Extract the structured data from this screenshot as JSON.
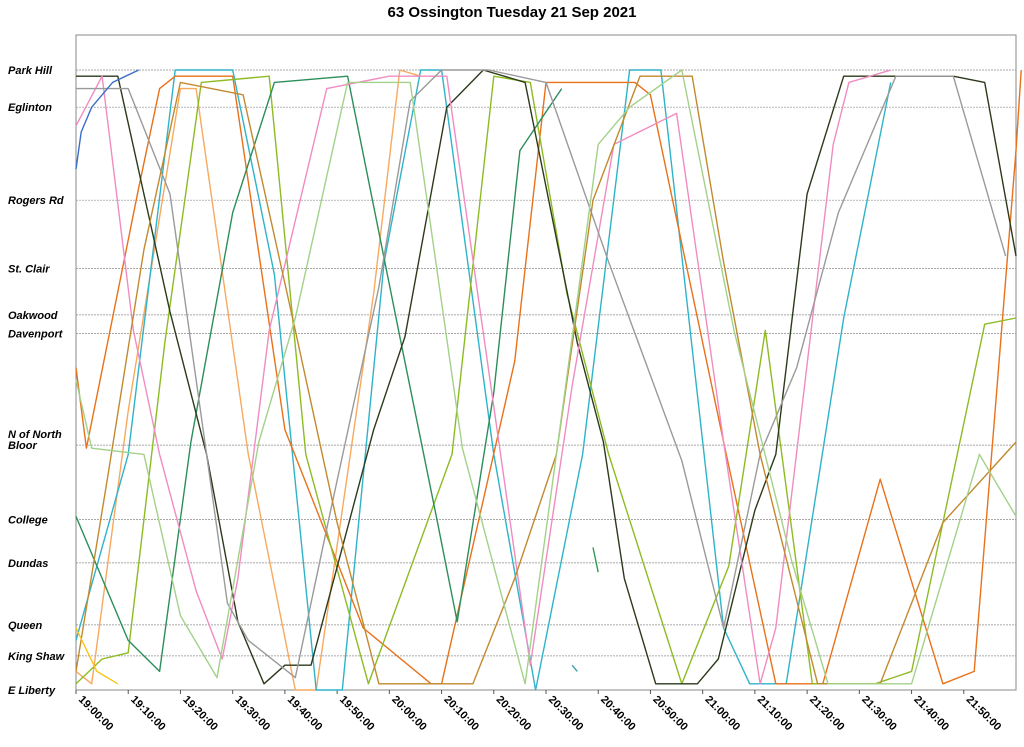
{
  "chart_data": {
    "type": "line",
    "title": "63 Ossington Tuesday 21 Sep 2021",
    "xlim": [
      "19:00:00",
      "22:00:00"
    ],
    "grid": true,
    "stops": [
      {
        "name": "Park Hill",
        "pos": 0
      },
      {
        "name": "Eglinton",
        "pos": 0.06
      },
      {
        "name": "Rogers Rd",
        "pos": 0.21
      },
      {
        "name": "St. Clair",
        "pos": 0.32
      },
      {
        "name": "Oakwood",
        "pos": 0.395
      },
      {
        "name": "Davenport",
        "pos": 0.425
      },
      {
        "name": "N of North Bloor",
        "pos": 0.605
      },
      {
        "name": "College",
        "pos": 0.725
      },
      {
        "name": "Dundas",
        "pos": 0.795
      },
      {
        "name": "Queen",
        "pos": 0.895
      },
      {
        "name": "King Shaw",
        "pos": 0.945
      },
      {
        "name": "E Liberty",
        "pos": 1
      }
    ],
    "x_ticks": [
      "19:00:00",
      "19:10:00",
      "19:20:00",
      "19:30:00",
      "19:40:00",
      "19:50:00",
      "20:00:00",
      "20:10:00",
      "20:20:00",
      "20:30:00",
      "20:40:00",
      "20:50:00",
      "21:00:00",
      "21:10:00",
      "21:20:00",
      "21:30:00",
      "21:40:00",
      "21:50:00"
    ],
    "series": [
      {
        "color": "#F7A95E",
        "points": [
          [
            0,
            0.97
          ],
          [
            3,
            0.99
          ],
          [
            10,
            0.55
          ],
          [
            20,
            0.03
          ],
          [
            23,
            0.03
          ],
          [
            33,
            0.62
          ],
          [
            42,
            1
          ],
          [
            46,
            1
          ],
          [
            57,
            0.36
          ],
          [
            62,
            0
          ],
          [
            66,
            0.01
          ]
        ]
      },
      {
        "color": "#2FB3C9",
        "points": [
          [
            0,
            0.92
          ],
          [
            10,
            0.62
          ],
          [
            19,
            0
          ],
          [
            30,
            0
          ],
          [
            38,
            0.33
          ],
          [
            46,
            1
          ],
          [
            51,
            1
          ],
          [
            59,
            0.31
          ],
          [
            66,
            0
          ],
          [
            70,
            0
          ],
          [
            80,
            0.62
          ],
          [
            88,
            1
          ],
          [
            97,
            0.62
          ],
          [
            106,
            0
          ],
          [
            112,
            0
          ],
          [
            124,
            0.9
          ],
          [
            129,
            0.99
          ],
          [
            136,
            0.99
          ],
          [
            147,
            0.4
          ],
          [
            156,
            0.02
          ]
        ]
      },
      {
        "color": "#E8711A",
        "points": [
          [
            0,
            0.48
          ],
          [
            2,
            0.61
          ],
          [
            12,
            0.19
          ],
          [
            16,
            0.03
          ],
          [
            19,
            0.01
          ],
          [
            30,
            0.01
          ],
          [
            40,
            0.58
          ],
          [
            55,
            0.9
          ],
          [
            68,
            0.99
          ],
          [
            70,
            0.99
          ],
          [
            84,
            0.47
          ],
          [
            90,
            0.02
          ],
          [
            107,
            0.02
          ],
          [
            110,
            0.04
          ],
          [
            124,
            0.6
          ],
          [
            134,
            0.99
          ],
          [
            143,
            0.99
          ],
          [
            154,
            0.66
          ],
          [
            166,
            0.99
          ],
          [
            172,
            0.97
          ],
          [
            180,
            0.13
          ],
          [
            181,
            0.0
          ]
        ]
      },
      {
        "color": "#8EBB24",
        "points": [
          [
            0,
            0.99
          ],
          [
            5,
            0.95
          ],
          [
            10,
            0.94
          ],
          [
            17,
            0.44
          ],
          [
            24,
            0.02
          ],
          [
            37,
            0.01
          ],
          [
            44,
            0.62
          ],
          [
            56,
            0.99
          ],
          [
            72,
            0.62
          ],
          [
            80,
            0.01
          ],
          [
            87,
            0.02
          ],
          [
            94,
            0.36
          ],
          [
            102,
            0.62
          ],
          [
            116,
            0.99
          ],
          [
            125,
            0.8
          ],
          [
            132,
            0.42
          ],
          [
            141,
            0.99
          ],
          [
            153,
            0.99
          ],
          [
            160,
            0.97
          ],
          [
            166,
            0.73
          ],
          [
            174,
            0.41
          ],
          [
            180,
            0.4
          ]
        ]
      },
      {
        "color": "#2C8E5A",
        "points": [
          [
            0,
            0.72
          ],
          [
            10,
            0.92
          ],
          [
            16,
            0.97
          ],
          [
            22,
            0.6
          ],
          [
            30,
            0.23
          ],
          [
            38,
            0.02
          ],
          [
            52,
            0.01
          ],
          [
            62,
            0.43
          ],
          [
            69,
            0.72
          ],
          [
            73,
            0.89
          ],
          [
            80,
            0.52
          ],
          [
            85,
            0.13
          ],
          [
            93,
            0.03
          ]
        ]
      },
      {
        "color": "#2C3A1B",
        "points": [
          [
            0,
            0.01
          ],
          [
            8,
            0.01
          ],
          [
            18,
            0.39
          ],
          [
            25,
            0.62
          ],
          [
            31,
            0.89
          ],
          [
            36,
            0.99
          ],
          [
            40,
            0.96
          ],
          [
            45,
            0.96
          ],
          [
            57,
            0.58
          ],
          [
            63,
            0.43
          ],
          [
            71,
            0.06
          ],
          [
            78,
            0
          ],
          [
            86,
            0.02
          ],
          [
            96,
            0.44
          ],
          [
            101,
            0.6
          ],
          [
            105,
            0.82
          ],
          [
            111,
            0.99
          ],
          [
            119,
            0.99
          ],
          [
            123,
            0.95
          ],
          [
            130,
            0.71
          ],
          [
            134,
            0.62
          ],
          [
            140,
            0.2
          ],
          [
            147,
            0.01
          ],
          [
            168,
            0.01
          ],
          [
            174,
            0.02
          ],
          [
            180,
            0.3
          ]
        ]
      },
      {
        "color": "#F08CC0",
        "points": [
          [
            0,
            0.09
          ],
          [
            5,
            0.01
          ],
          [
            11,
            0.42
          ],
          [
            16,
            0.62
          ],
          [
            23,
            0.84
          ],
          [
            28,
            0.95
          ],
          [
            31,
            0.82
          ],
          [
            37,
            0.42
          ],
          [
            48,
            0.03
          ],
          [
            60,
            0.01
          ],
          [
            71,
            0.01
          ],
          [
            83,
            0.72
          ],
          [
            87,
            0.96
          ],
          [
            95,
            0.51
          ],
          [
            103,
            0.12
          ],
          [
            115,
            0.07
          ],
          [
            124,
            0.6
          ],
          [
            131,
            0.99
          ],
          [
            134,
            0.9
          ],
          [
            145,
            0.12
          ],
          [
            148,
            0.02
          ],
          [
            156,
            0.0
          ]
        ]
      },
      {
        "color": "#9A9A9A",
        "points": [
          [
            0,
            0.03
          ],
          [
            10,
            0.03
          ],
          [
            18,
            0.2
          ],
          [
            25,
            0.62
          ],
          [
            29,
            0.86
          ],
          [
            33,
            0.92
          ],
          [
            42,
            0.98
          ],
          [
            48,
            0.74
          ],
          [
            58,
            0.35
          ],
          [
            64,
            0.05
          ],
          [
            70,
            0.0
          ],
          [
            79,
            0.0
          ],
          [
            90,
            0.02
          ],
          [
            102,
            0.31
          ],
          [
            116,
            0.63
          ],
          [
            124,
            0.9
          ],
          [
            131,
            0.62
          ],
          [
            138,
            0.48
          ],
          [
            146,
            0.23
          ],
          [
            157,
            0.01
          ],
          [
            168,
            0.01
          ],
          [
            178,
            0.3
          ]
        ]
      },
      {
        "color": "#C18A2F",
        "points": [
          [
            0,
            0.97
          ],
          [
            6,
            0.66
          ],
          [
            13,
            0.29
          ],
          [
            20,
            0.02
          ],
          [
            32,
            0.04
          ],
          [
            42,
            0.42
          ],
          [
            50,
            0.73
          ],
          [
            58,
            0.99
          ],
          [
            76,
            0.99
          ],
          [
            84,
            0.82
          ],
          [
            92,
            0.62
          ],
          [
            99,
            0.21
          ],
          [
            108,
            0.01
          ],
          [
            118,
            0.01
          ],
          [
            124,
            0.31
          ],
          [
            131,
            0.62
          ],
          [
            142,
            0.99
          ],
          [
            154,
            0.99
          ],
          [
            166,
            0.73
          ],
          [
            180,
            0.6
          ]
        ]
      },
      {
        "color": "#A4D18A",
        "points": [
          [
            0,
            0.5
          ],
          [
            3,
            0.61
          ],
          [
            13,
            0.62
          ],
          [
            20,
            0.88
          ],
          [
            27,
            0.98
          ],
          [
            35,
            0.6
          ],
          [
            42,
            0.4
          ],
          [
            52,
            0.02
          ],
          [
            64,
            0.02
          ],
          [
            74,
            0.61
          ],
          [
            86,
            0.99
          ],
          [
            92,
            0.62
          ],
          [
            100,
            0.12
          ],
          [
            106,
            0.06
          ],
          [
            116,
            0.0
          ],
          [
            126,
            0.42
          ],
          [
            137,
            0.79
          ],
          [
            144,
            0.99
          ],
          [
            160,
            0.99
          ],
          [
            173,
            0.62
          ],
          [
            180,
            0.72
          ]
        ]
      },
      {
        "color": "#3A6FC9",
        "points": [
          [
            0,
            0.16
          ],
          [
            1,
            0.1
          ],
          [
            3,
            0.06
          ],
          [
            7,
            0.02
          ],
          [
            12,
            0.0
          ]
        ]
      },
      {
        "color": "#F5C518",
        "points": [
          [
            0,
            0.9
          ],
          [
            4,
            0.97
          ],
          [
            8,
            0.99
          ]
        ]
      },
      {
        "color": "#3AA0A8",
        "points": [
          [
            95,
            0.96
          ],
          [
            96,
            0.97
          ]
        ]
      },
      {
        "color": "#2E9E56",
        "points": [
          [
            99,
            0.77
          ],
          [
            100,
            0.81
          ]
        ]
      }
    ]
  }
}
